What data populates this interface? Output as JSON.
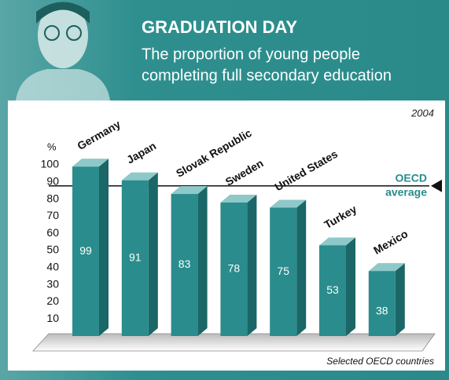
{
  "chart_data": {
    "type": "bar3d",
    "title": "GRADUATION DAY",
    "subtitle": [
      "The proportion of young people",
      "completing full secondary education"
    ],
    "year": "2004",
    "y_label": "%",
    "x_label": "Selected OECD countries",
    "categories": [
      "Germany",
      "Japan",
      "Slovak Republic",
      "Sweden",
      "United States",
      "Turkey",
      "Mexico"
    ],
    "values": [
      99,
      91,
      83,
      78,
      75,
      53,
      38
    ],
    "color": "#2a8c8c",
    "ylim": [
      0,
      100
    ],
    "yticks": [
      10,
      20,
      30,
      40,
      50,
      60,
      70,
      80,
      90,
      100
    ],
    "reference_line": {
      "label": [
        "OECD",
        "average"
      ],
      "value": 85
    }
  }
}
